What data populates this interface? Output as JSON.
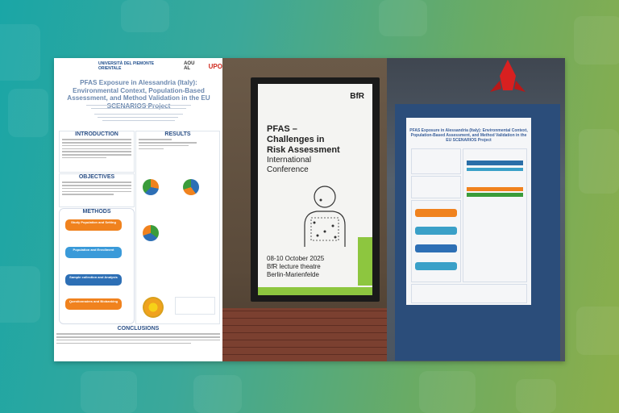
{
  "poster": {
    "logo_left": "UNIVERSITÀ DEL PIEMONTE ORIENTALE",
    "logo_mid": "AOU AL",
    "logo_right": "UPO",
    "title": "PFAS Exposure in Alessandria (Italy): Environmental Context, Population-Based Assessment, and Method Validation in the EU SCENARIOS Project",
    "sections": {
      "introduction": "INTRODUCTION",
      "objectives": "OBJECTIVES",
      "methods": "METHODS",
      "results": "RESULTS",
      "conclusions": "CONCLUSIONS"
    },
    "methods_steps": [
      {
        "num": "01",
        "label": "Study Population and Setting",
        "color": "#f0821e"
      },
      {
        "num": "02",
        "label": "Population and Enrollment",
        "color": "#3a9ad9"
      },
      {
        "num": "03",
        "label": "Sample collection and Analysis",
        "color": "#2d6fb5"
      },
      {
        "num": "04",
        "label": "Questionnaires and Biobanking",
        "color": "#f0821e"
      }
    ]
  },
  "screen": {
    "brand": "BfR",
    "title_lines": [
      "PFAS –",
      "Challenges in",
      "Risk Assessment"
    ],
    "subtitle_lines": [
      "International",
      "Conference"
    ],
    "date": "08-10 October 2025",
    "venue_lines": [
      "BfR lecture theatre",
      "Berlin-Marienfelde"
    ]
  },
  "board_poster": {
    "title": "PFAS Exposure in Alessandria (Italy): Environmental Context, Population-Based Assessment, and Method Validation in the EU SCENARIOS Project"
  },
  "colors": {
    "accent_orange": "#f0821e",
    "accent_blue": "#2d6fb5",
    "brand_green": "#8dc63f"
  }
}
